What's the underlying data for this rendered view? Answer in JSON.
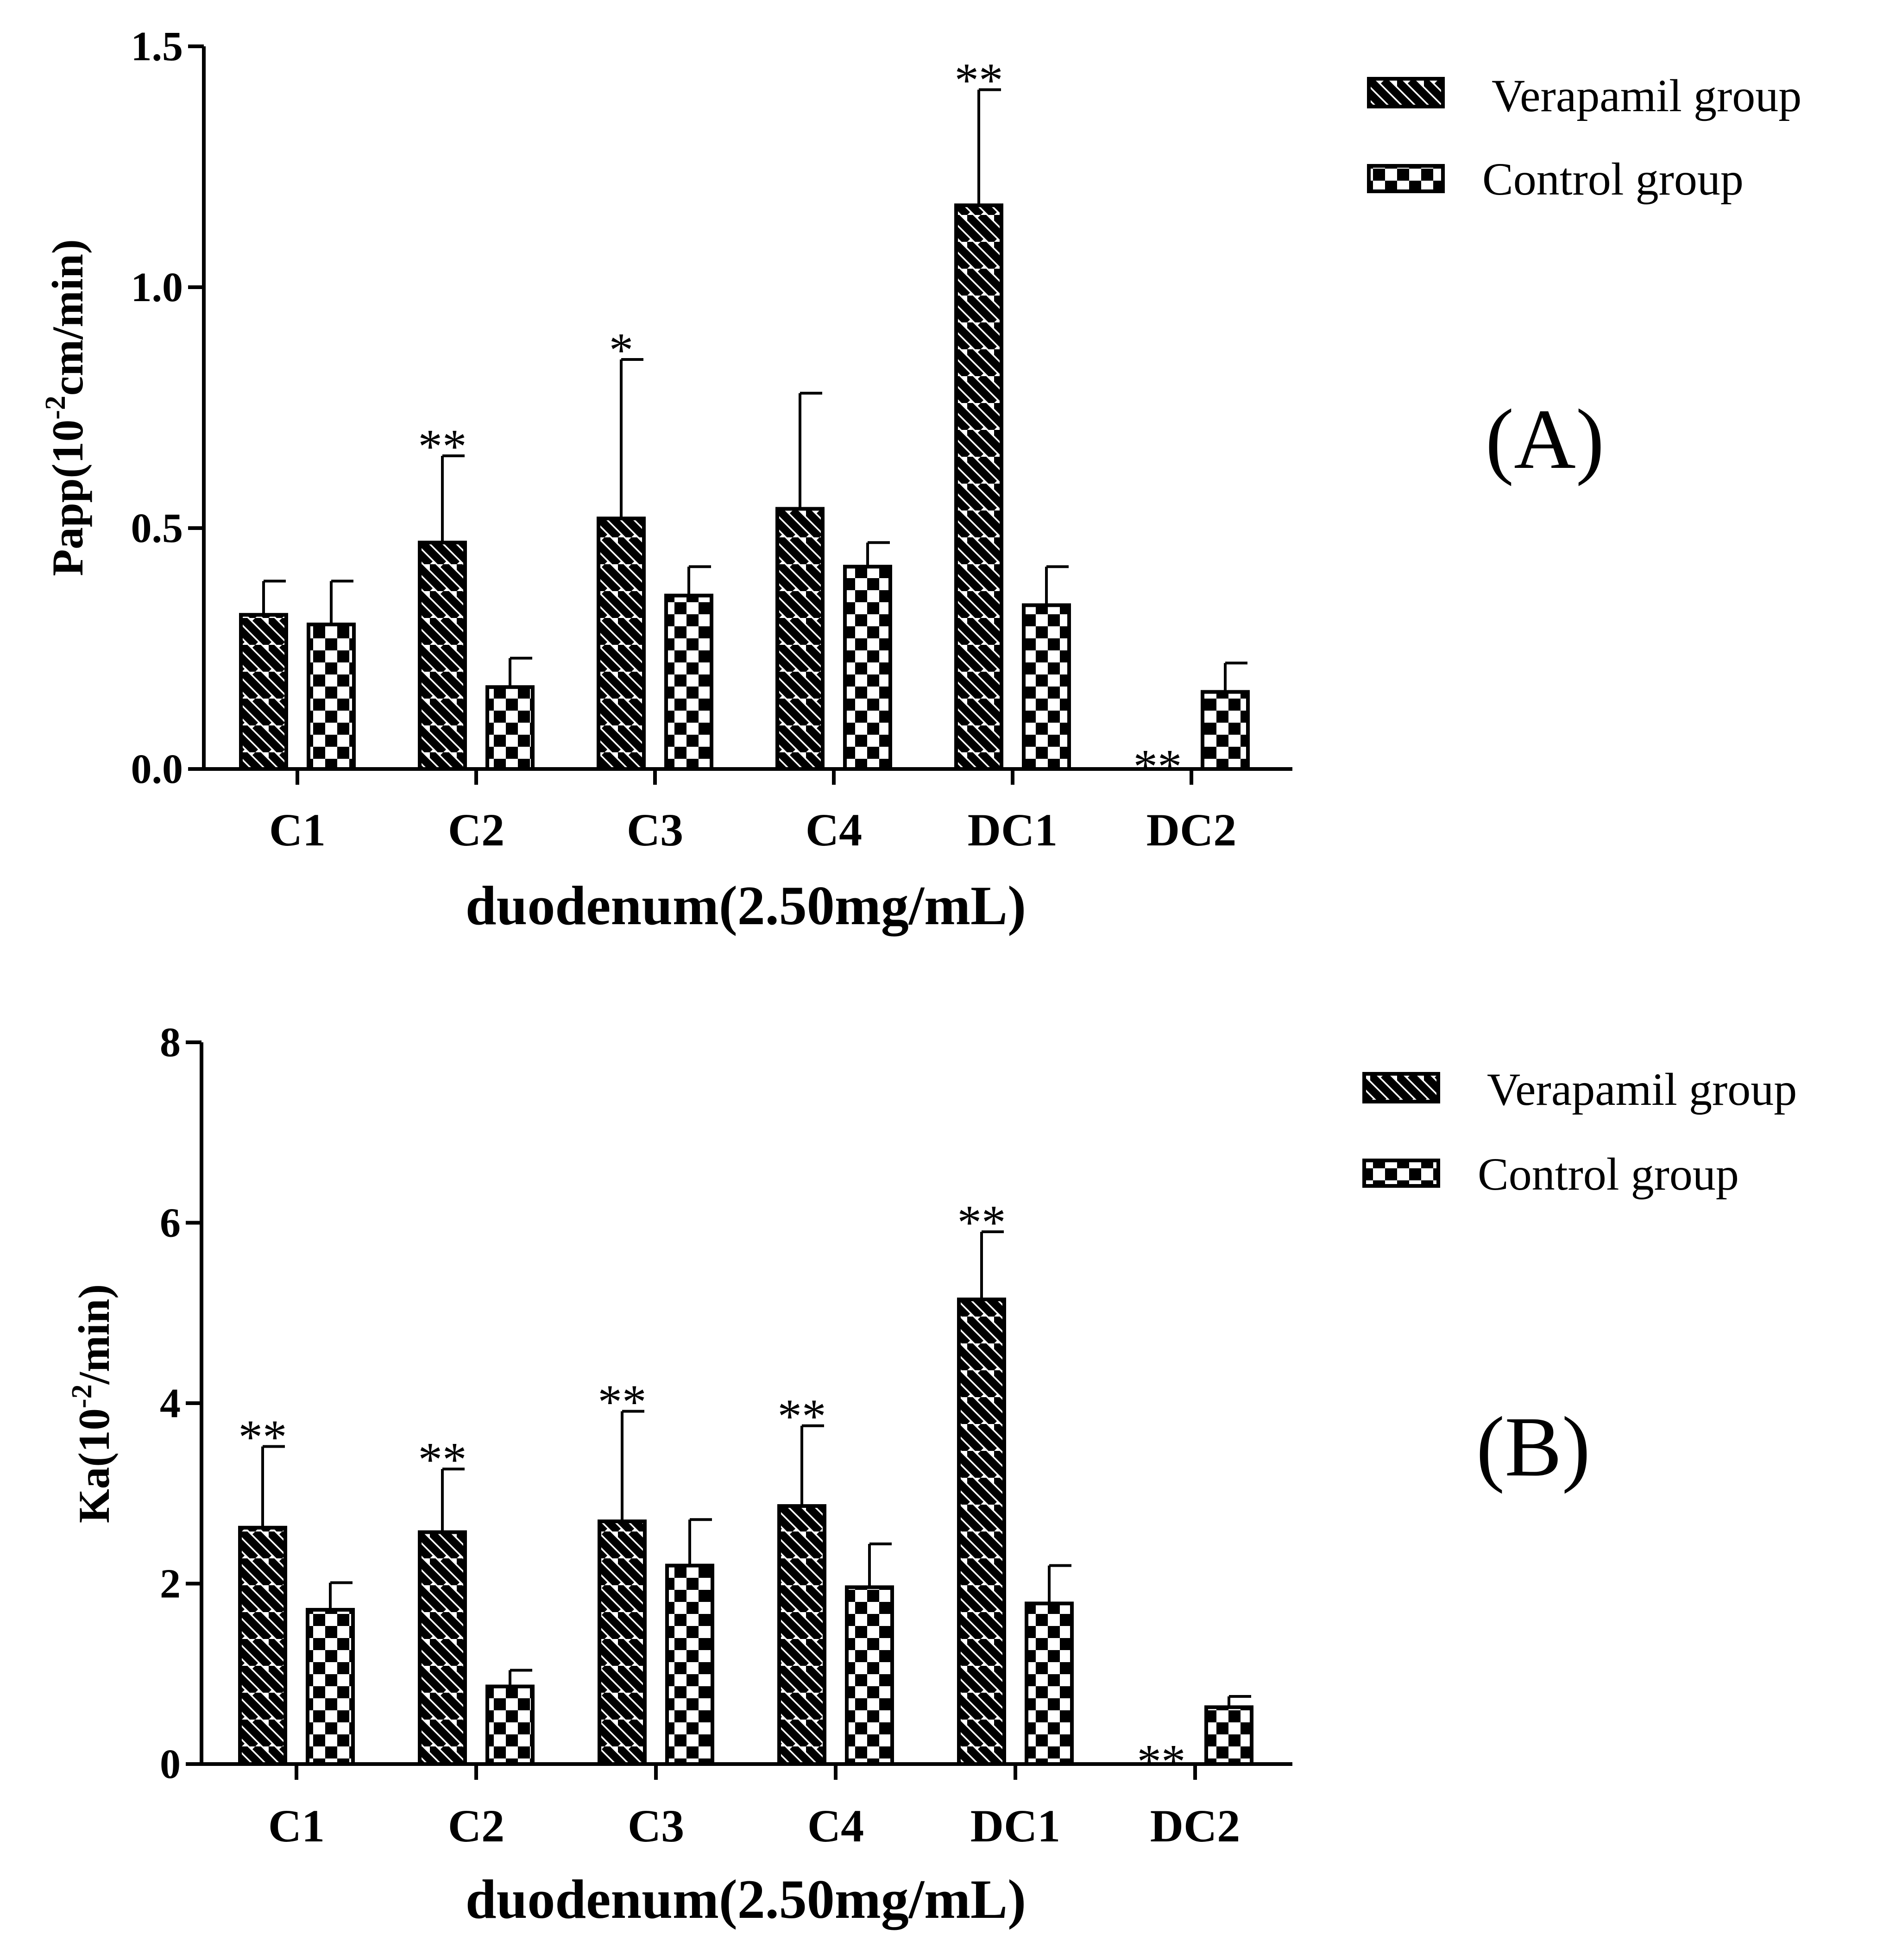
{
  "colors": {
    "foreground": "#000000",
    "background": "#ffffff"
  },
  "chart_data": [
    {
      "type": "bar",
      "panel_label": "(A)",
      "ylabel": {
        "prefix": "Papp(10",
        "sup": "-2",
        "suffix": "cm/min)"
      },
      "xlabel": "duodenum(2.50mg/mL)",
      "categories": [
        "C1",
        "C2",
        "C3",
        "C4",
        "DC1",
        "DC2"
      ],
      "ylim": [
        0,
        1.5
      ],
      "yticks": [
        0,
        0.5,
        1.0,
        1.5
      ],
      "ytick_labels": [
        "0.0",
        "0.5",
        "1.0",
        "1.5"
      ],
      "legend": {
        "position": "top-right",
        "entries": [
          "Verapamil group",
          "Control group"
        ]
      },
      "series": [
        {
          "name": "Verapamil group",
          "pattern": "diagonal-stripes",
          "values": [
            0.32,
            0.47,
            0.52,
            0.54,
            1.17,
            0
          ],
          "errors": [
            0.07,
            0.18,
            0.33,
            0.24,
            0.24,
            0
          ],
          "sig": [
            "",
            "**",
            "*",
            "",
            "**",
            "**"
          ]
        },
        {
          "name": "Control group",
          "pattern": "checkerboard",
          "values": [
            0.3,
            0.17,
            0.36,
            0.42,
            0.34,
            0.16
          ],
          "errors": [
            0.09,
            0.06,
            0.06,
            0.05,
            0.08,
            0.06
          ],
          "sig": [
            "",
            "",
            "",
            "",
            "",
            ""
          ]
        }
      ]
    },
    {
      "type": "bar",
      "panel_label": "(B)",
      "ylabel": {
        "prefix": "Ka(10",
        "sup": "-2",
        "suffix": "/min)"
      },
      "xlabel": "duodenum(2.50mg/mL)",
      "categories": [
        "C1",
        "C2",
        "C3",
        "C4",
        "DC1",
        "DC2"
      ],
      "ylim": [
        0,
        8
      ],
      "yticks": [
        0,
        2,
        4,
        6,
        8
      ],
      "ytick_labels": [
        "0",
        "2",
        "4",
        "6",
        "8"
      ],
      "legend": {
        "position": "top-right",
        "entries": [
          "Verapamil group",
          "Control group"
        ]
      },
      "series": [
        {
          "name": "Verapamil group",
          "pattern": "diagonal-stripes",
          "values": [
            2.62,
            2.57,
            2.69,
            2.86,
            5.15,
            0
          ],
          "errors": [
            0.9,
            0.7,
            1.22,
            0.89,
            0.75,
            0
          ],
          "sig": [
            "**",
            "**",
            "**",
            "**",
            "**",
            "**"
          ]
        },
        {
          "name": "Control group",
          "pattern": "checkerboard",
          "values": [
            1.71,
            0.86,
            2.2,
            1.96,
            1.78,
            0.63
          ],
          "errors": [
            0.3,
            0.18,
            0.51,
            0.48,
            0.42,
            0.12
          ],
          "sig": [
            "",
            "",
            "",
            "",
            "",
            ""
          ]
        }
      ]
    }
  ]
}
